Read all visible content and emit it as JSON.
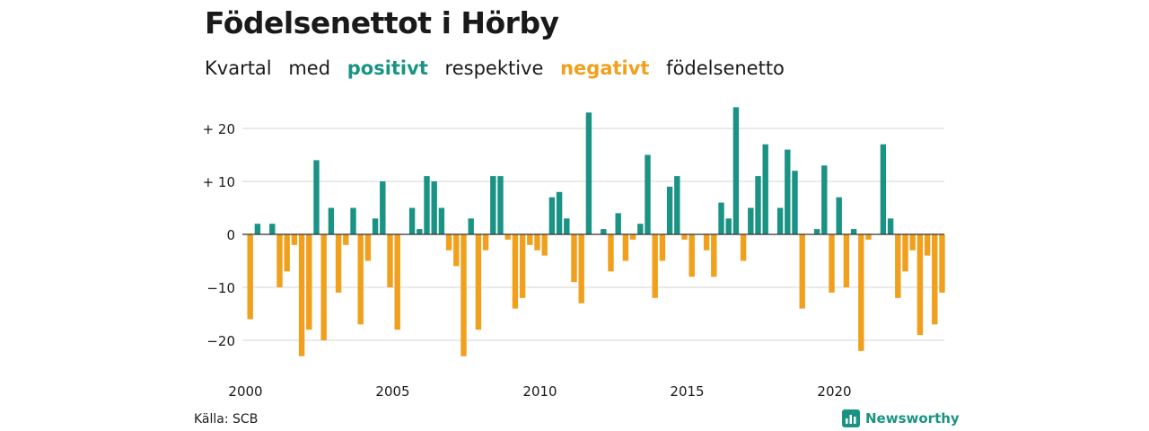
{
  "header": {
    "title": "Födelsenettot i Hörby",
    "subtitle_parts": [
      "Kvartal",
      "med",
      "positivt",
      "respektive",
      "negativt",
      "födelsenetto"
    ]
  },
  "footer": {
    "source": "Källa: SCB",
    "brand": "Newsworthy"
  },
  "colors": {
    "positive": "#1a9384",
    "negative": "#f0a01c",
    "grid": "#dddddd",
    "axis": "#333333"
  },
  "chart_data": {
    "type": "bar",
    "title": "Födelsenettot i Hörby",
    "xlabel": "",
    "ylabel": "",
    "ylim": [
      -25,
      24.5
    ],
    "yticks": [
      {
        "value": 20,
        "label": "+ 20"
      },
      {
        "value": 10,
        "label": "+ 10"
      },
      {
        "value": 0,
        "label": "0"
      },
      {
        "value": -10,
        "label": "−10"
      },
      {
        "value": -20,
        "label": "−20"
      }
    ],
    "xticks": [
      "2000",
      "2005",
      "2010",
      "2015",
      "2020"
    ],
    "x_start": "2000 Q1",
    "values": [
      -16,
      2,
      0,
      2,
      -10,
      -7,
      -2,
      -23,
      -18,
      14,
      -20,
      5,
      -11,
      -2,
      5,
      -17,
      -5,
      3,
      10,
      -10,
      -18,
      0,
      5,
      1,
      11,
      10,
      5,
      -3,
      -6,
      -23,
      3,
      -18,
      -3,
      11,
      11,
      -1,
      -14,
      -12,
      -2,
      -3,
      -4,
      7,
      8,
      3,
      -9,
      -13,
      23,
      0,
      1,
      -7,
      4,
      -5,
      -1,
      2,
      15,
      -12,
      -5,
      9,
      11,
      -1,
      -8,
      0,
      -3,
      -8,
      6,
      3,
      24,
      -5,
      5,
      11,
      17,
      0,
      5,
      16,
      12,
      -14,
      0,
      1,
      13,
      -11,
      7,
      -10,
      1,
      -22,
      -1,
      0,
      17,
      3,
      -12,
      -7,
      -3,
      -19,
      -4,
      -17,
      -11
    ]
  }
}
